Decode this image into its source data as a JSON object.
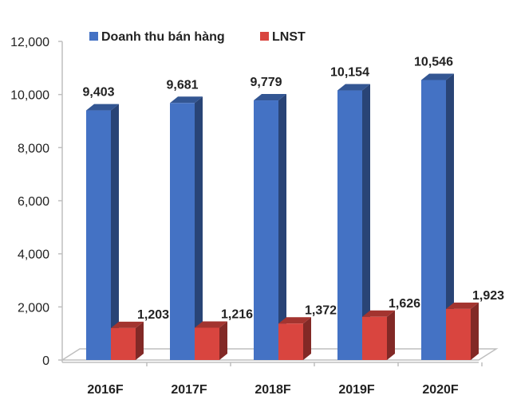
{
  "chart_data": {
    "type": "bar",
    "style": "3d-clustered-column",
    "title": "",
    "xlabel": "",
    "ylabel": "",
    "categories": [
      "2016F",
      "2017F",
      "2018F",
      "2019F",
      "2020F"
    ],
    "series": [
      {
        "name": "Doanh thu bán hàng",
        "values": [
          9403,
          9681,
          9779,
          10154,
          10546
        ],
        "labels": [
          "9,403",
          "9,681",
          "9,779",
          "10,154",
          "10,546"
        ],
        "color": "#4472C4"
      },
      {
        "name": "LNST",
        "values": [
          1203,
          1216,
          1372,
          1626,
          1923
        ],
        "labels": [
          "1,203",
          "1,216",
          "1,372",
          "1,626",
          "1,923"
        ],
        "color": "#D9453F"
      }
    ],
    "ylim": [
      0,
      12000
    ],
    "yticks": [
      0,
      2000,
      4000,
      6000,
      8000,
      10000,
      12000
    ],
    "ytick_labels": [
      "0",
      "2,000",
      "4,000",
      "6,000",
      "8,000",
      "10,000",
      "12,000"
    ],
    "grid": false,
    "legend": "top"
  }
}
